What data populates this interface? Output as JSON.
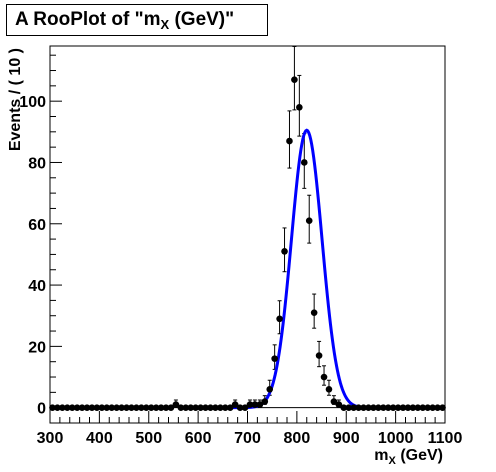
{
  "chart_data": {
    "type": "scatter",
    "title": {
      "prefix": "A RooPlot of \"m",
      "sub": "X",
      "suffix": " (GeV)\""
    },
    "xlabel": {
      "main": "m",
      "sub": "X",
      "suffix": " (GeV)"
    },
    "ylabel": "Events / ( 10 )",
    "xlim": [
      300,
      1100
    ],
    "ylim": [
      -5,
      118
    ],
    "x_ticks": [
      300,
      400,
      500,
      600,
      700,
      800,
      900,
      1000,
      1100
    ],
    "y_ticks": [
      0,
      20,
      40,
      60,
      80,
      100
    ],
    "grid": false,
    "series": [
      {
        "kind": "data-points",
        "color": "#000000",
        "x": [
          305,
          315,
          325,
          335,
          345,
          355,
          365,
          375,
          385,
          395,
          405,
          415,
          425,
          435,
          445,
          455,
          465,
          475,
          485,
          495,
          505,
          515,
          525,
          535,
          545,
          555,
          565,
          575,
          585,
          595,
          605,
          615,
          625,
          635,
          645,
          655,
          665,
          675,
          685,
          695,
          705,
          715,
          725,
          735,
          745,
          755,
          765,
          775,
          785,
          795,
          805,
          815,
          825,
          835,
          845,
          855,
          865,
          875,
          885,
          895,
          905,
          915,
          925,
          935,
          945,
          955,
          965,
          975,
          985,
          995,
          1005,
          1015,
          1025,
          1035,
          1045,
          1055,
          1065,
          1075,
          1085,
          1095
        ],
        "y": [
          0,
          0,
          0,
          0,
          0,
          0,
          0,
          0,
          0,
          0,
          0,
          0,
          0,
          0,
          0,
          0,
          0,
          0,
          0,
          0,
          0,
          0,
          0,
          0,
          0,
          1,
          0,
          0,
          0,
          0,
          0,
          0,
          0,
          0,
          0,
          0,
          0,
          1,
          0,
          0,
          1,
          1,
          1,
          2,
          6,
          16,
          29,
          51,
          87,
          107,
          98,
          80,
          61,
          31,
          17,
          10,
          6,
          2,
          1,
          0,
          0,
          0,
          0,
          0,
          0,
          0,
          0,
          0,
          0,
          0,
          0,
          0,
          0,
          0,
          0,
          0,
          0,
          0,
          0,
          0
        ]
      },
      {
        "kind": "fit-curve",
        "color": "#0000ff",
        "shape": "gaussian",
        "x_range": [
          600,
          1000
        ],
        "peak": 90.5,
        "mean": 820,
        "sigma": 31
      }
    ]
  }
}
